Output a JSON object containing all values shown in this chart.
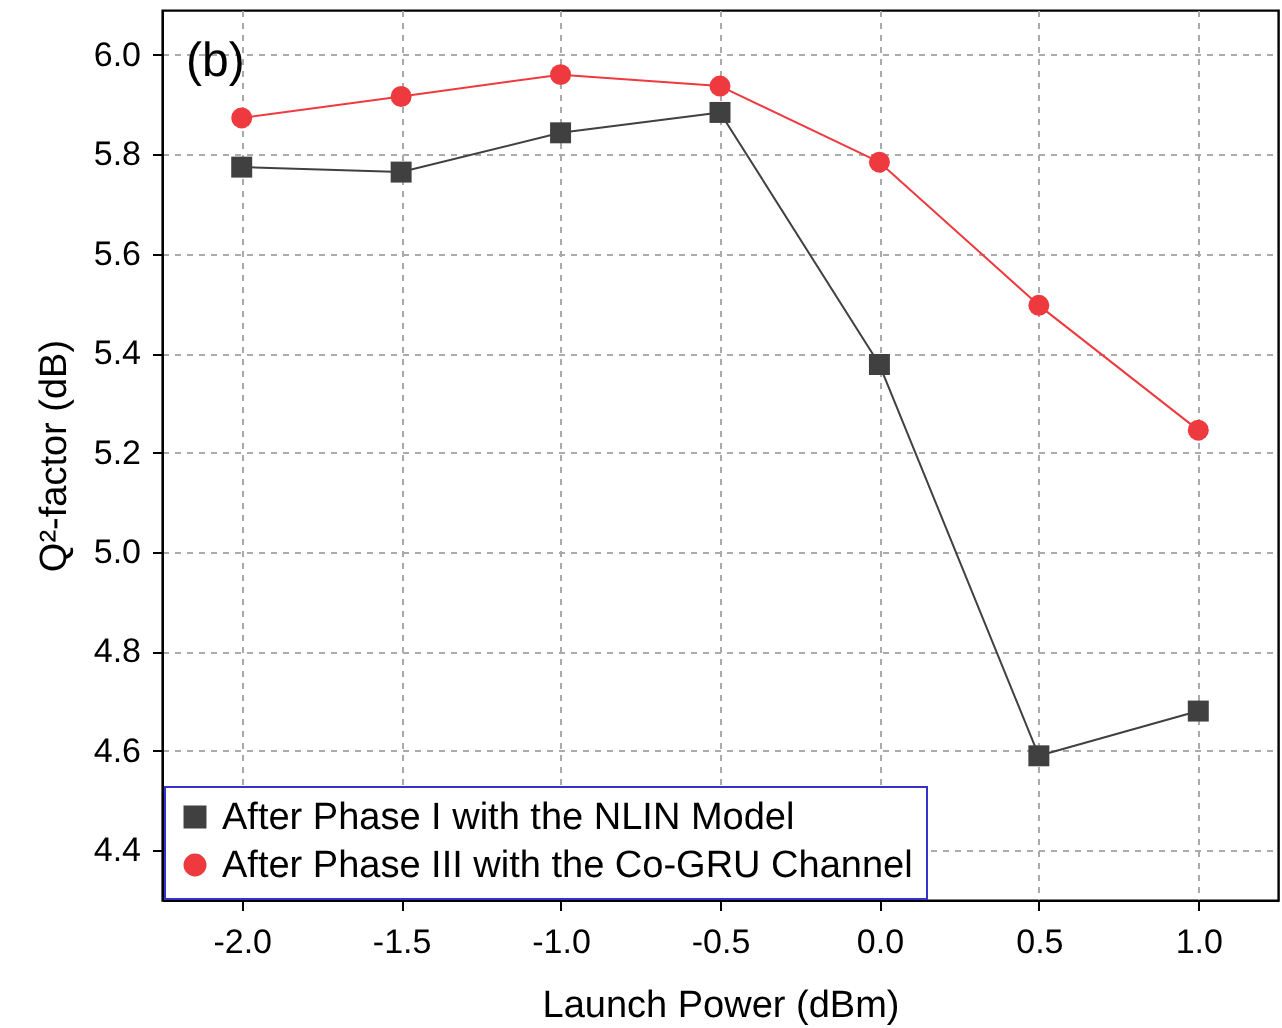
{
  "chart_data": {
    "type": "line",
    "xlabel": "Launch Power (dBm)",
    "ylabel": "Q²-factor (dB)",
    "annotations": [
      "(b)"
    ],
    "x": [
      -2.0,
      -1.5,
      -1.0,
      -0.5,
      0.0,
      0.5,
      1.0
    ],
    "xlim": [
      -2.25,
      1.25
    ],
    "xticks": [
      {
        "value": -2.0,
        "label": "-2.0"
      },
      {
        "value": -1.5,
        "label": "-1.5"
      },
      {
        "value": -1.0,
        "label": "-1.0"
      },
      {
        "value": -0.5,
        "label": "-0.5"
      },
      {
        "value": 0.0,
        "label": "0.0"
      },
      {
        "value": 0.5,
        "label": "0.5"
      },
      {
        "value": 1.0,
        "label": "1.0"
      }
    ],
    "ylim": [
      4.3,
      6.09
    ],
    "yticks": [
      {
        "value": 4.4,
        "label": "4.4"
      },
      {
        "value": 4.6,
        "label": "4.6"
      },
      {
        "value": 4.8,
        "label": "4.8"
      },
      {
        "value": 5.0,
        "label": "5.0"
      },
      {
        "value": 5.2,
        "label": "5.2"
      },
      {
        "value": 5.4,
        "label": "5.4"
      },
      {
        "value": 5.6,
        "label": "5.6"
      },
      {
        "value": 5.8,
        "label": "5.8"
      },
      {
        "value": 6.0,
        "label": "6.0"
      }
    ],
    "grid": true,
    "legend": "bottom left",
    "line_style": "solid",
    "series": [
      {
        "name": "After Phase I with the NLIN Model",
        "color": "#404040",
        "marker": "square",
        "values": [
          5.774,
          5.764,
          5.843,
          5.884,
          5.377,
          4.59,
          4.68
        ]
      },
      {
        "name": "After Phase III with the Co-GRU Channel",
        "color": "#ee3a3f",
        "marker": "circle",
        "values": [
          5.873,
          5.916,
          5.96,
          5.937,
          5.784,
          5.496,
          5.245
        ]
      }
    ]
  }
}
